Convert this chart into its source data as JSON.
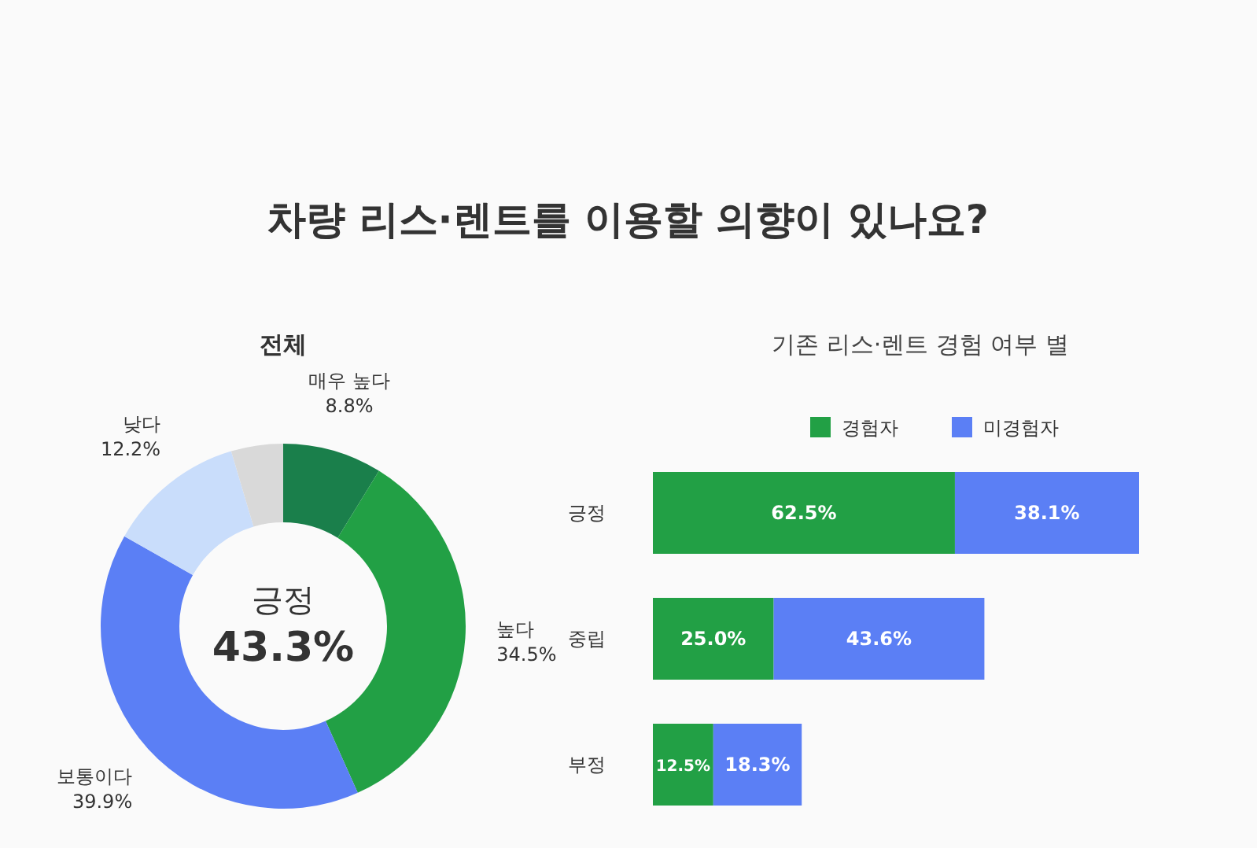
{
  "chart_data": [
    {
      "type": "donut",
      "title": "차량 리스·렌트를 이용할 의향이 있나요?",
      "subtitle": "전체",
      "categories": [
        "매우 높다",
        "높다",
        "보통이다",
        "낮다",
        null
      ],
      "values": [
        8.8,
        34.5,
        39.9,
        12.2,
        4.6
      ],
      "colors": [
        "#1a7f4b",
        "#22a045",
        "#5b7ff5",
        "#c9ddfb",
        "#d9d9d9"
      ],
      "value_labels": [
        "8.8%",
        "34.5%",
        "39.9%",
        "12.2%",
        null
      ],
      "annotations": [
        "긍정",
        "43.3%"
      ]
    },
    {
      "type": "bar",
      "orientation": "horizontal",
      "stacked": true,
      "title": "기존 리스·렌트 경험 여부 별",
      "categories": [
        "긍정",
        "중립",
        "부정"
      ],
      "series": [
        {
          "name": "경험자",
          "color": "#22a045",
          "values": [
            62.5,
            25.0,
            12.5
          ],
          "value_labels": [
            "62.5%",
            "25.0%",
            "12.5%"
          ]
        },
        {
          "name": "미경험자",
          "color": "#5b7ff5",
          "values": [
            38.1,
            43.6,
            18.3
          ],
          "value_labels": [
            "38.1%",
            "43.6%",
            "18.3%"
          ]
        }
      ],
      "legend": "top"
    }
  ]
}
